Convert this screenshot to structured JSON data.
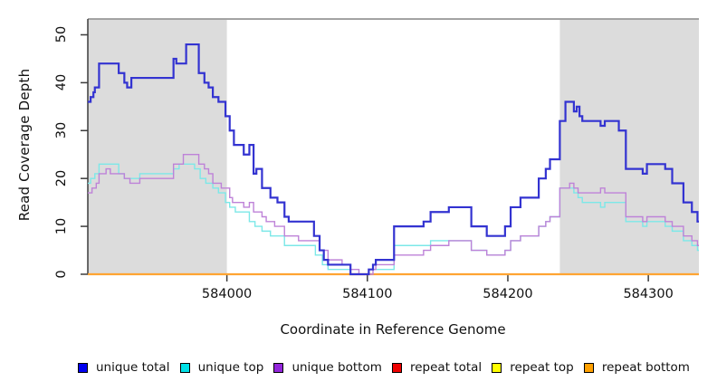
{
  "figure": {
    "y_axis_title": "Read Coverage Depth",
    "x_axis_title": "Coordinate in Reference Genome"
  },
  "style": {
    "shade_color": "#DCDCDC",
    "top_border_color": "#A3A3A3",
    "axis_color": "#3C3C3C",
    "tick_label_color": "#111111",
    "background": "#FFFFFF"
  },
  "legend": {
    "items": [
      {
        "label": "unique total",
        "color": "#0000F0"
      },
      {
        "label": "unique top",
        "color": "#00E0E6"
      },
      {
        "label": "unique bottom",
        "color": "#9326DB"
      },
      {
        "label": "repeat total",
        "color": "#EE0000"
      },
      {
        "label": "repeat top",
        "color": "#FFFF00"
      },
      {
        "label": "repeat bottom",
        "color": "#FFA000"
      }
    ]
  },
  "chart_data": {
    "type": "line",
    "subtype": "step-coverage-plot",
    "title": "",
    "xlabel": "Coordinate in Reference Genome",
    "ylabel": "Read Coverage Depth",
    "grid": false,
    "legend_position": "bottom",
    "x_axis": {
      "min": 583901,
      "max": 584336,
      "ticks": [
        584000,
        584100,
        584200,
        584300
      ]
    },
    "y_axis": {
      "min": 0,
      "max": 53.3,
      "ticks": [
        0,
        10,
        20,
        30,
        40,
        50
      ]
    },
    "shaded_regions": [
      {
        "from": 583901,
        "to": 584000,
        "meaning": "repeat region"
      },
      {
        "from": 584237,
        "to": 584336,
        "meaning": "repeat region"
      }
    ],
    "series": [
      {
        "name": "repeat total",
        "color": "#EE0000",
        "width": 1.2,
        "steps": [
          [
            583901,
            0
          ]
        ]
      },
      {
        "name": "repeat top",
        "color": "#FFFF00",
        "width": 1.2,
        "steps": [
          [
            583901,
            0
          ]
        ]
      },
      {
        "name": "repeat bottom",
        "color": "#FFA432",
        "width": 2.2,
        "steps": [
          [
            583901,
            0
          ]
        ]
      },
      {
        "name": "unique top",
        "color": "#7CE8E8",
        "width": 1.4,
        "steps": [
          [
            583901,
            19
          ],
          [
            583903,
            20
          ],
          [
            583906,
            21
          ],
          [
            583909,
            23
          ],
          [
            583923,
            21
          ],
          [
            583927,
            20
          ],
          [
            583931,
            20
          ],
          [
            583938,
            21
          ],
          [
            583962,
            22
          ],
          [
            583966,
            23
          ],
          [
            583977,
            22
          ],
          [
            583981,
            20
          ],
          [
            583985,
            19
          ],
          [
            583990,
            18
          ],
          [
            583994,
            17
          ],
          [
            583999,
            15
          ],
          [
            584002,
            14
          ],
          [
            584006,
            13
          ],
          [
            584016,
            11
          ],
          [
            584020,
            10
          ],
          [
            584025,
            9
          ],
          [
            584031,
            8
          ],
          [
            584041,
            6
          ],
          [
            584063,
            4
          ],
          [
            584068,
            2
          ],
          [
            584072,
            1
          ],
          [
            584088,
            0
          ],
          [
            584101,
            1
          ],
          [
            584119,
            6
          ],
          [
            584145,
            7
          ],
          [
            584174,
            5
          ],
          [
            584185,
            4
          ],
          [
            584198,
            5
          ],
          [
            584202,
            7
          ],
          [
            584209,
            8
          ],
          [
            584222,
            10
          ],
          [
            584227,
            11
          ],
          [
            584230,
            12
          ],
          [
            584237,
            18
          ],
          [
            584247,
            17
          ],
          [
            584250,
            16
          ],
          [
            584253,
            15
          ],
          [
            584266,
            14
          ],
          [
            584269,
            15
          ],
          [
            584284,
            11
          ],
          [
            584296,
            10
          ],
          [
            584299,
            11
          ],
          [
            584312,
            10
          ],
          [
            584317,
            9
          ],
          [
            584325,
            7
          ],
          [
            584331,
            6
          ],
          [
            584335,
            5
          ]
        ]
      },
      {
        "name": "unique bottom",
        "color": "#BE82D8",
        "width": 1.4,
        "steps": [
          [
            583901,
            17
          ],
          [
            583904,
            18
          ],
          [
            583907,
            19
          ],
          [
            583909,
            21
          ],
          [
            583914,
            22
          ],
          [
            583917,
            21
          ],
          [
            583927,
            20
          ],
          [
            583931,
            19
          ],
          [
            583938,
            20
          ],
          [
            583962,
            23
          ],
          [
            583969,
            25
          ],
          [
            583980,
            23
          ],
          [
            583984,
            22
          ],
          [
            583987,
            21
          ],
          [
            583990,
            19
          ],
          [
            583996,
            18
          ],
          [
            584002,
            16
          ],
          [
            584004,
            15
          ],
          [
            584012,
            14
          ],
          [
            584016,
            15
          ],
          [
            584019,
            13
          ],
          [
            584025,
            12
          ],
          [
            584028,
            11
          ],
          [
            584034,
            10
          ],
          [
            584041,
            8
          ],
          [
            584051,
            7
          ],
          [
            584066,
            5
          ],
          [
            584072,
            3
          ],
          [
            584082,
            2
          ],
          [
            584088,
            1
          ],
          [
            584094,
            0
          ],
          [
            584104,
            1
          ],
          [
            584106,
            2
          ],
          [
            584119,
            4
          ],
          [
            584140,
            5
          ],
          [
            584145,
            6
          ],
          [
            584158,
            7
          ],
          [
            584174,
            5
          ],
          [
            584185,
            4
          ],
          [
            584198,
            5
          ],
          [
            584202,
            7
          ],
          [
            584209,
            8
          ],
          [
            584222,
            10
          ],
          [
            584227,
            11
          ],
          [
            584230,
            12
          ],
          [
            584237,
            18
          ],
          [
            584244,
            19
          ],
          [
            584247,
            18
          ],
          [
            584250,
            17
          ],
          [
            584266,
            18
          ],
          [
            584269,
            17
          ],
          [
            584284,
            12
          ],
          [
            584296,
            11
          ],
          [
            584299,
            12
          ],
          [
            584312,
            11
          ],
          [
            584317,
            10
          ],
          [
            584325,
            8
          ],
          [
            584331,
            7
          ],
          [
            584335,
            6
          ]
        ]
      },
      {
        "name": "unique total",
        "color": "#3333D1",
        "width": 2.2,
        "steps": [
          [
            583901,
            36
          ],
          [
            583903,
            37
          ],
          [
            583905,
            38
          ],
          [
            583906,
            39
          ],
          [
            583909,
            44
          ],
          [
            583923,
            42
          ],
          [
            583927,
            40
          ],
          [
            583929,
            39
          ],
          [
            583932,
            41
          ],
          [
            583962,
            45
          ],
          [
            583964,
            44
          ],
          [
            583971,
            48
          ],
          [
            583980,
            42
          ],
          [
            583984,
            40
          ],
          [
            583987,
            39
          ],
          [
            583990,
            37
          ],
          [
            583994,
            36
          ],
          [
            583999,
            33
          ],
          [
            584002,
            30
          ],
          [
            584005,
            27
          ],
          [
            584012,
            25
          ],
          [
            584016,
            27
          ],
          [
            584019,
            21
          ],
          [
            584021,
            22
          ],
          [
            584025,
            18
          ],
          [
            584031,
            16
          ],
          [
            584036,
            15
          ],
          [
            584041,
            12
          ],
          [
            584044,
            11
          ],
          [
            584062,
            8
          ],
          [
            584066,
            5
          ],
          [
            584069,
            3
          ],
          [
            584072,
            2
          ],
          [
            584088,
            0
          ],
          [
            584101,
            1
          ],
          [
            584104,
            2
          ],
          [
            584106,
            3
          ],
          [
            584119,
            10
          ],
          [
            584140,
            11
          ],
          [
            584145,
            13
          ],
          [
            584158,
            14
          ],
          [
            584174,
            10
          ],
          [
            584185,
            8
          ],
          [
            584198,
            10
          ],
          [
            584202,
            14
          ],
          [
            584209,
            16
          ],
          [
            584222,
            20
          ],
          [
            584227,
            22
          ],
          [
            584230,
            24
          ],
          [
            584237,
            32
          ],
          [
            584241,
            36
          ],
          [
            584247,
            34
          ],
          [
            584249,
            35
          ],
          [
            584251,
            33
          ],
          [
            584253,
            32
          ],
          [
            584266,
            31
          ],
          [
            584269,
            32
          ],
          [
            584279,
            30
          ],
          [
            584284,
            22
          ],
          [
            584296,
            21
          ],
          [
            584299,
            23
          ],
          [
            584312,
            22
          ],
          [
            584317,
            19
          ],
          [
            584325,
            15
          ],
          [
            584331,
            13
          ],
          [
            584335,
            11
          ]
        ]
      }
    ]
  }
}
